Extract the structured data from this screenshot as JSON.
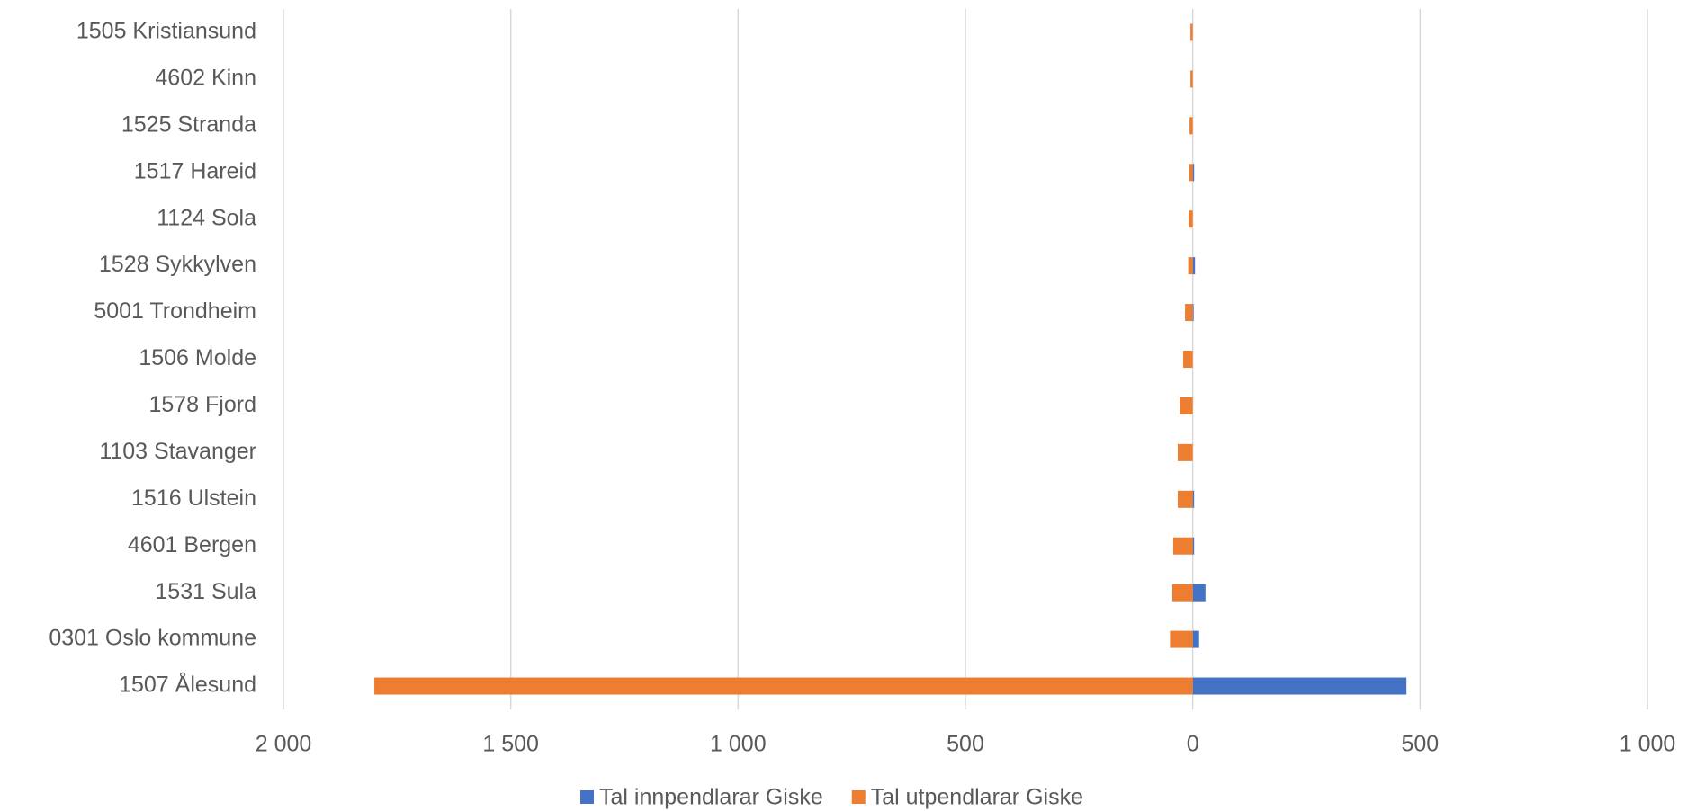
{
  "chart_data": {
    "type": "bar",
    "orientation": "horizontal",
    "categories": [
      "1505 Kristiansund",
      "4602 Kinn",
      "1525 Stranda",
      "1517 Hareid",
      "1124 Sola",
      "1528 Sykkylven",
      "5001 Trondheim",
      "1506 Molde",
      "1578 Fjord",
      "1103 Stavanger",
      "1516 Ulstein",
      "4601 Bergen",
      "1531 Sula",
      "0301 Oslo kommune",
      "1507 Ålesund"
    ],
    "series": [
      {
        "name": "Tal innpendlarar Giske",
        "color": "#4472c4",
        "values": [
          0,
          0,
          0,
          3,
          0,
          5,
          2,
          0,
          0,
          0,
          3,
          3,
          28,
          14,
          470
        ]
      },
      {
        "name": "Tal utpendlarar Giske",
        "color": "#ed7d31",
        "values": [
          -5,
          -5,
          -7,
          -8,
          -9,
          -10,
          -17,
          -21,
          -28,
          -33,
          -33,
          -43,
          -45,
          -50,
          -1800
        ]
      }
    ],
    "xlim": [
      -2000,
      1000
    ],
    "xticks": [
      {
        "value": -2000,
        "label": "2 000"
      },
      {
        "value": -1500,
        "label": "1 500"
      },
      {
        "value": -1000,
        "label": "1 000"
      },
      {
        "value": -500,
        "label": "500"
      },
      0,
      500,
      {
        "value": 1000,
        "label": "1 000"
      }
    ],
    "grid": true,
    "legend": "bottom"
  }
}
